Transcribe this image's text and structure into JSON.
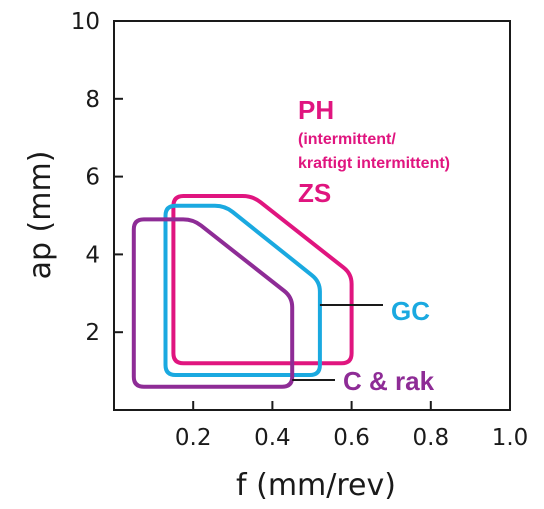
{
  "chart_data": {
    "type": "area",
    "xlabel": "f (mm/rev)",
    "ylabel": "ap (mm)",
    "xlim": [
      0,
      1.0
    ],
    "ylim": [
      0,
      10
    ],
    "x_ticks": [
      "0.2",
      "0.4",
      "0.6",
      "0.8",
      "1.0"
    ],
    "x_tick_values": [
      0.2,
      0.4,
      0.6,
      0.8,
      1.0
    ],
    "y_ticks": [
      "2",
      "4",
      "6",
      "8",
      "10"
    ],
    "y_tick_values": [
      2,
      4,
      6,
      8,
      10
    ],
    "grid": false,
    "series": [
      {
        "name": "PH / ZS",
        "color": "#e0157f",
        "points": [
          [
            0.15,
            5.5
          ],
          [
            0.35,
            5.5
          ],
          [
            0.6,
            3.5
          ],
          [
            0.6,
            1.2
          ],
          [
            0.15,
            1.2
          ]
        ]
      },
      {
        "name": "GC",
        "color": "#1aa9e0",
        "points": [
          [
            0.13,
            5.25
          ],
          [
            0.28,
            5.25
          ],
          [
            0.52,
            3.3
          ],
          [
            0.52,
            0.9
          ],
          [
            0.13,
            0.9
          ]
        ]
      },
      {
        "name": "C & rak",
        "color": "#8e2c96",
        "points": [
          [
            0.05,
            4.9
          ],
          [
            0.2,
            4.9
          ],
          [
            0.45,
            2.9
          ],
          [
            0.45,
            0.6
          ],
          [
            0.05,
            0.6
          ]
        ]
      }
    ],
    "annotations": {
      "ph_title": "PH",
      "ph_sub_1": "(intermittent/",
      "ph_sub_2": "kraftigt intermittent)",
      "zs": "ZS",
      "gc": "GC",
      "crak": "C & rak"
    }
  }
}
